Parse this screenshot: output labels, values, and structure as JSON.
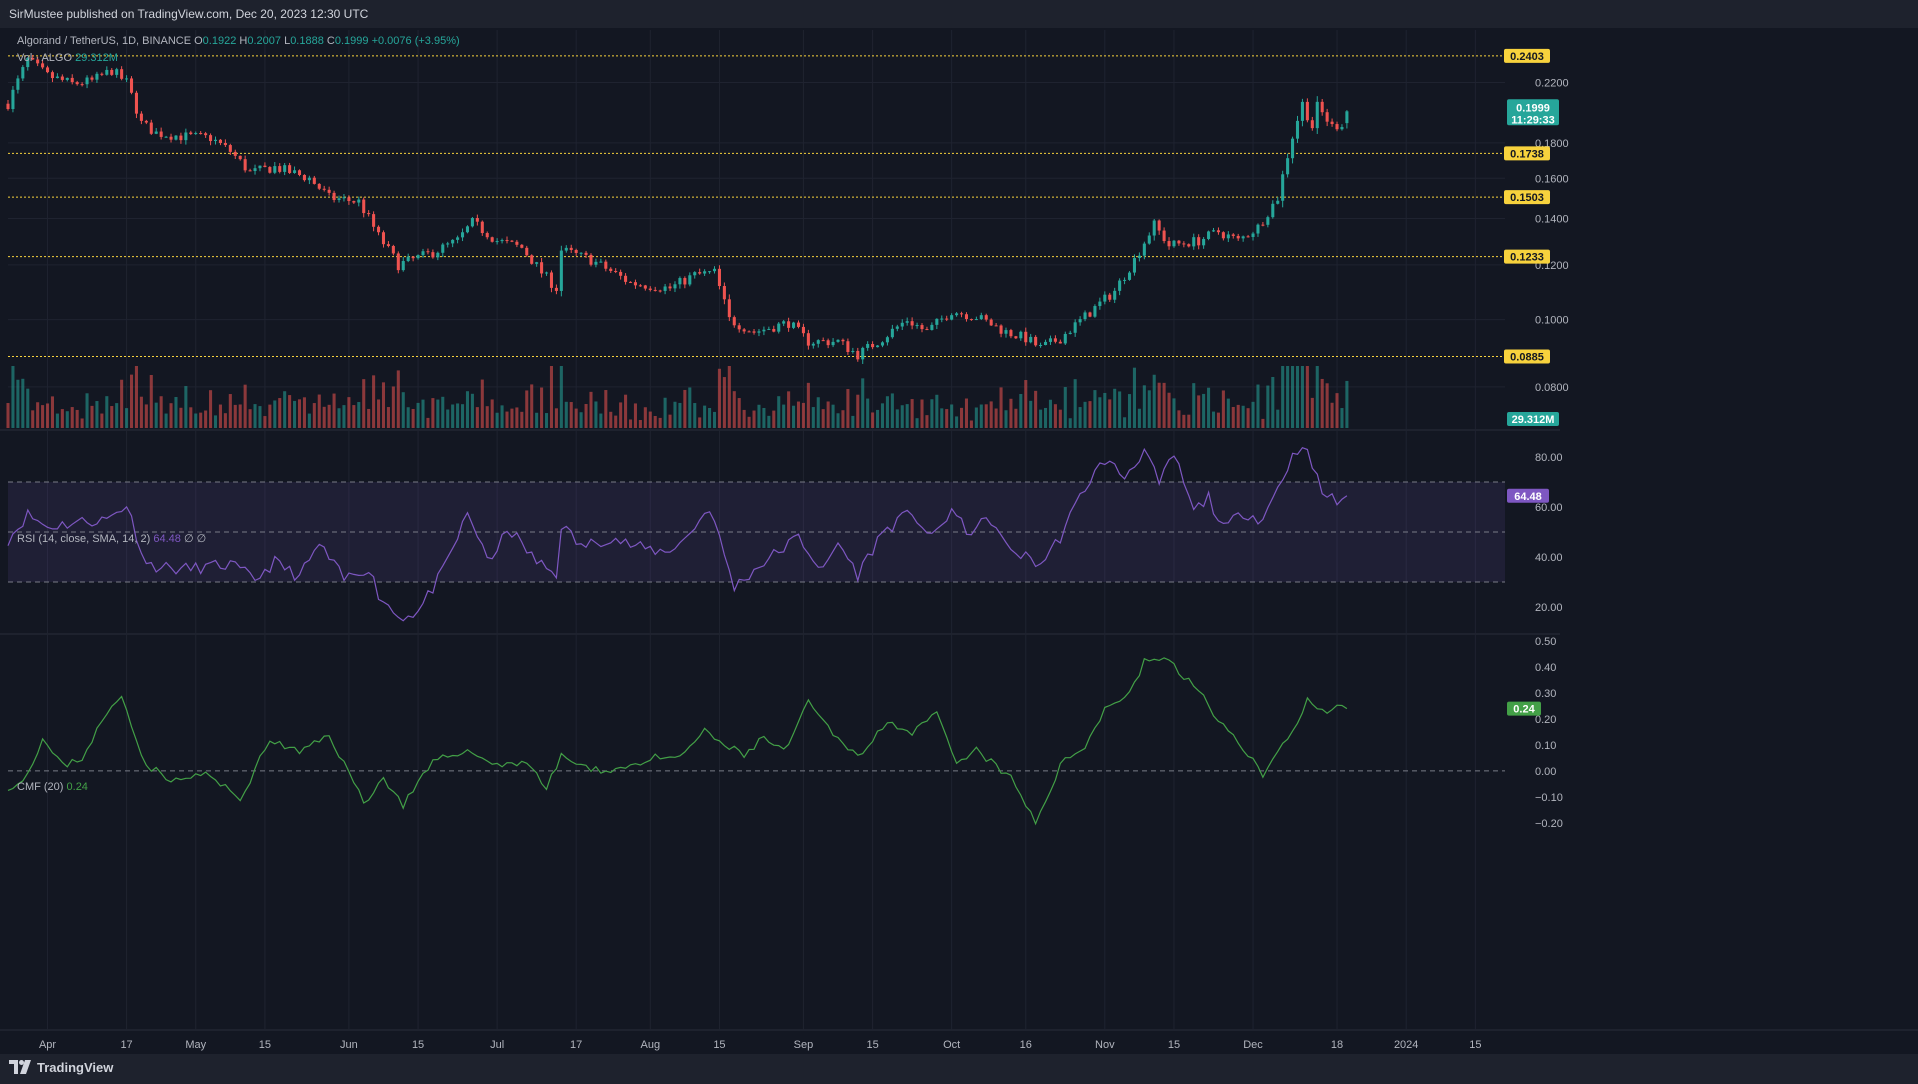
{
  "header": {
    "published": "SirMustee published on TradingView.com, Dec 20, 2023 12:30 UTC"
  },
  "symbol": {
    "name": "Algorand / TetherUS, 1D, BINANCE",
    "o_label": "O",
    "o": "0.1922",
    "h_label": "H",
    "h": "0.2007",
    "l_label": "L",
    "l": "0.1888",
    "c_label": "C",
    "c": "0.1999",
    "change": "+0.0076 (+3.95%)"
  },
  "volume": {
    "label": "Vol · ALGO",
    "value": "29.312M",
    "badge": "29.312M"
  },
  "rsi": {
    "label": "RSI (14, close, SMA, 14, 2)",
    "value": "64.48",
    "extra": "∅ ∅",
    "badge": "64.48"
  },
  "cmf": {
    "label": "CMF (20)",
    "value": "0.24",
    "badge": "0.24"
  },
  "price_badge": {
    "price": "0.1999",
    "countdown": "11:29:33"
  },
  "levels": [
    "0.2403",
    "0.1738",
    "0.1503",
    "0.1233",
    "0.0885"
  ],
  "price_ticks": [
    "0.2200",
    "0.1800",
    "0.1600",
    "0.1400",
    "0.1200",
    "0.1000",
    "0.0800"
  ],
  "rsi_ticks": [
    "80.00",
    "60.00",
    "40.00",
    "20.00"
  ],
  "cmf_ticks": [
    "0.50",
    "0.40",
    "0.30",
    "0.20",
    "0.10",
    "0.00",
    "−0.10",
    "−0.20"
  ],
  "time_ticks": [
    "Apr",
    "17",
    "May",
    "15",
    "Jun",
    "15",
    "Jul",
    "17",
    "Aug",
    "15",
    "Sep",
    "15",
    "Oct",
    "16",
    "Nov",
    "15",
    "Dec",
    "18",
    "2024",
    "15"
  ],
  "footer": {
    "brand": "TradingView"
  },
  "colors": {
    "bg": "#131722",
    "up": "#26a69a",
    "down": "#ef5350",
    "level": "#f7d23d",
    "rsi": "#7e57c2",
    "cmf": "#43a047",
    "grid": "#1f2330"
  },
  "chart_data": [
    {
      "type": "candlestick",
      "title": "Algorand / TetherUS, 1D, BINANCE",
      "ylim": [
        0.07,
        0.25
      ],
      "x_range": [
        "2023-03-24",
        "2024-01-21"
      ],
      "last": {
        "date": "2023-12-20",
        "open": 0.1922,
        "high": 0.2007,
        "low": 0.1888,
        "close": 0.1999
      },
      "close_waypoints": [
        [
          "2023-03-24",
          0.205
        ],
        [
          "2023-03-28",
          0.237
        ],
        [
          "2023-04-01",
          0.225
        ],
        [
          "2023-04-06",
          0.219
        ],
        [
          "2023-04-10",
          0.221
        ],
        [
          "2023-04-14",
          0.229
        ],
        [
          "2023-04-17",
          0.22
        ],
        [
          "2023-04-20",
          0.192
        ],
        [
          "2023-04-23",
          0.186
        ],
        [
          "2023-04-28",
          0.184
        ],
        [
          "2023-05-04",
          0.183
        ],
        [
          "2023-05-08",
          0.175
        ],
        [
          "2023-05-12",
          0.163
        ],
        [
          "2023-05-17",
          0.166
        ],
        [
          "2023-05-24",
          0.16
        ],
        [
          "2023-05-28",
          0.15
        ],
        [
          "2023-06-03",
          0.148
        ],
        [
          "2023-06-07",
          0.132
        ],
        [
          "2023-06-11",
          0.12
        ],
        [
          "2023-06-18",
          0.125
        ],
        [
          "2023-06-23",
          0.13
        ],
        [
          "2023-06-26",
          0.138
        ],
        [
          "2023-07-01",
          0.13
        ],
        [
          "2023-07-06",
          0.127
        ],
        [
          "2023-07-10",
          0.117
        ],
        [
          "2023-07-13",
          0.111
        ],
        [
          "2023-07-14",
          0.126
        ],
        [
          "2023-07-20",
          0.122
        ],
        [
          "2023-07-28",
          0.113
        ],
        [
          "2023-08-05",
          0.111
        ],
        [
          "2023-08-10",
          0.116
        ],
        [
          "2023-08-14",
          0.117
        ],
        [
          "2023-08-17",
          0.1
        ],
        [
          "2023-08-22",
          0.096
        ],
        [
          "2023-08-29",
          0.099
        ],
        [
          "2023-09-02",
          0.093
        ],
        [
          "2023-09-08",
          0.093
        ],
        [
          "2023-09-12",
          0.089
        ],
        [
          "2023-09-17",
          0.094
        ],
        [
          "2023-09-22",
          0.1
        ],
        [
          "2023-09-26",
          0.096
        ],
        [
          "2023-10-01",
          0.103
        ],
        [
          "2023-10-06",
          0.101
        ],
        [
          "2023-10-12",
          0.096
        ],
        [
          "2023-10-16",
          0.094
        ],
        [
          "2023-10-19",
          0.091
        ],
        [
          "2023-10-23",
          0.094
        ],
        [
          "2023-10-28",
          0.101
        ],
        [
          "2023-11-03",
          0.11
        ],
        [
          "2023-11-07",
          0.122
        ],
        [
          "2023-11-11",
          0.137
        ],
        [
          "2023-11-14",
          0.128
        ],
        [
          "2023-11-20",
          0.13
        ],
        [
          "2023-11-24",
          0.134
        ],
        [
          "2023-11-28",
          0.13
        ],
        [
          "2023-12-02",
          0.136
        ],
        [
          "2023-12-06",
          0.15
        ],
        [
          "2023-12-09",
          0.184
        ],
        [
          "2023-12-11",
          0.205
        ],
        [
          "2023-12-13",
          0.19
        ],
        [
          "2023-12-14",
          0.203
        ],
        [
          "2023-12-17",
          0.19
        ],
        [
          "2023-12-19",
          0.192
        ],
        [
          "2023-12-20",
          0.1999
        ]
      ]
    },
    {
      "type": "bar",
      "title": "Vol · ALGO",
      "last_value": "29.312M"
    },
    {
      "type": "line",
      "title": "RSI (14, close, SMA, 14, 2)",
      "ylim": [
        10,
        90
      ],
      "bands": {
        "upper": 70,
        "middle": 50,
        "lower": 30
      },
      "last_value": 64.48,
      "waypoints": [
        [
          "2023-03-24",
          47
        ],
        [
          "2023-03-28",
          57
        ],
        [
          "2023-04-01",
          52
        ],
        [
          "2023-04-07",
          54
        ],
        [
          "2023-04-13",
          55
        ],
        [
          "2023-04-17",
          61
        ],
        [
          "2023-04-21",
          37
        ],
        [
          "2023-04-28",
          35
        ],
        [
          "2023-05-08",
          37
        ],
        [
          "2023-05-13",
          31
        ],
        [
          "2023-05-17",
          38
        ],
        [
          "2023-05-22",
          32
        ],
        [
          "2023-05-26",
          45
        ],
        [
          "2023-05-31",
          31
        ],
        [
          "2023-06-05",
          36
        ],
        [
          "2023-06-07",
          25
        ],
        [
          "2023-06-11",
          16
        ],
        [
          "2023-06-15",
          18
        ],
        [
          "2023-06-20",
          34
        ],
        [
          "2023-06-25",
          57
        ],
        [
          "2023-06-30",
          37
        ],
        [
          "2023-07-03",
          52
        ],
        [
          "2023-07-09",
          38
        ],
        [
          "2023-07-13",
          33
        ],
        [
          "2023-07-14",
          53
        ],
        [
          "2023-07-18",
          44
        ],
        [
          "2023-07-24",
          48
        ],
        [
          "2023-07-29",
          44
        ],
        [
          "2023-08-04",
          42
        ],
        [
          "2023-08-08",
          47
        ],
        [
          "2023-08-13",
          60
        ],
        [
          "2023-08-18",
          28
        ],
        [
          "2023-08-24",
          38
        ],
        [
          "2023-08-31",
          48
        ],
        [
          "2023-09-05",
          34
        ],
        [
          "2023-09-08",
          46
        ],
        [
          "2023-09-12",
          33
        ],
        [
          "2023-09-17",
          50
        ],
        [
          "2023-09-23",
          58
        ],
        [
          "2023-09-27",
          47
        ],
        [
          "2023-10-01",
          59
        ],
        [
          "2023-10-04",
          50
        ],
        [
          "2023-10-09",
          55
        ],
        [
          "2023-10-12",
          44
        ],
        [
          "2023-10-19",
          37
        ],
        [
          "2023-10-23",
          48
        ],
        [
          "2023-10-28",
          68
        ],
        [
          "2023-11-01",
          79
        ],
        [
          "2023-11-05",
          72
        ],
        [
          "2023-11-09",
          83
        ],
        [
          "2023-11-12",
          69
        ],
        [
          "2023-11-15",
          81
        ],
        [
          "2023-11-19",
          58
        ],
        [
          "2023-11-22",
          64
        ],
        [
          "2023-11-25",
          51
        ],
        [
          "2023-11-29",
          58
        ],
        [
          "2023-12-03",
          55
        ],
        [
          "2023-12-06",
          68
        ],
        [
          "2023-12-09",
          80
        ],
        [
          "2023-12-11",
          86
        ],
        [
          "2023-12-13",
          76
        ],
        [
          "2023-12-15",
          66
        ],
        [
          "2023-12-18",
          62
        ],
        [
          "2023-12-20",
          64.48
        ]
      ]
    },
    {
      "type": "line",
      "title": "CMF (20)",
      "ylim": [
        -0.22,
        0.52
      ],
      "zero_line": 0,
      "last_value": 0.24,
      "waypoints": [
        [
          "2023-03-24",
          -0.06
        ],
        [
          "2023-03-27",
          -0.04
        ],
        [
          "2023-03-31",
          0.12
        ],
        [
          "2023-04-04",
          0.02
        ],
        [
          "2023-04-08",
          0.05
        ],
        [
          "2023-04-12",
          0.19
        ],
        [
          "2023-04-16",
          0.29
        ],
        [
          "2023-04-21",
          0.02
        ],
        [
          "2023-04-27",
          -0.04
        ],
        [
          "2023-05-03",
          -0.01
        ],
        [
          "2023-05-10",
          -0.11
        ],
        [
          "2023-05-16",
          0.12
        ],
        [
          "2023-05-22",
          0.07
        ],
        [
          "2023-05-28",
          0.14
        ],
        [
          "2023-06-04",
          -0.12
        ],
        [
          "2023-06-08",
          -0.03
        ],
        [
          "2023-06-12",
          -0.13
        ],
        [
          "2023-06-18",
          0.03
        ],
        [
          "2023-06-24",
          0.08
        ],
        [
          "2023-07-02",
          0.02
        ],
        [
          "2023-07-07",
          0.04
        ],
        [
          "2023-07-11",
          -0.07
        ],
        [
          "2023-07-14",
          0.06
        ],
        [
          "2023-07-20",
          0.0
        ],
        [
          "2023-07-26",
          0.01
        ],
        [
          "2023-08-02",
          0.05
        ],
        [
          "2023-08-06",
          0.04
        ],
        [
          "2023-08-12",
          0.15
        ],
        [
          "2023-08-16",
          0.1
        ],
        [
          "2023-08-20",
          0.06
        ],
        [
          "2023-08-24",
          0.13
        ],
        [
          "2023-08-28",
          0.07
        ],
        [
          "2023-09-02",
          0.26
        ],
        [
          "2023-09-08",
          0.12
        ],
        [
          "2023-09-13",
          0.06
        ],
        [
          "2023-09-18",
          0.2
        ],
        [
          "2023-09-23",
          0.14
        ],
        [
          "2023-09-28",
          0.22
        ],
        [
          "2023-10-02",
          0.02
        ],
        [
          "2023-10-06",
          0.08
        ],
        [
          "2023-10-13",
          -0.03
        ],
        [
          "2023-10-18",
          -0.2
        ],
        [
          "2023-10-23",
          0.02
        ],
        [
          "2023-10-28",
          0.1
        ],
        [
          "2023-11-01",
          0.24
        ],
        [
          "2023-11-06",
          0.3
        ],
        [
          "2023-11-09",
          0.42
        ],
        [
          "2023-11-13",
          0.44
        ],
        [
          "2023-11-17",
          0.36
        ],
        [
          "2023-11-20",
          0.32
        ],
        [
          "2023-11-24",
          0.18
        ],
        [
          "2023-11-27",
          0.14
        ],
        [
          "2023-11-30",
          0.07
        ],
        [
          "2023-12-03",
          -0.02
        ],
        [
          "2023-12-06",
          0.07
        ],
        [
          "2023-12-09",
          0.16
        ],
        [
          "2023-12-12",
          0.27
        ],
        [
          "2023-12-16",
          0.21
        ],
        [
          "2023-12-18",
          0.24
        ],
        [
          "2023-12-20",
          0.24
        ]
      ]
    }
  ]
}
